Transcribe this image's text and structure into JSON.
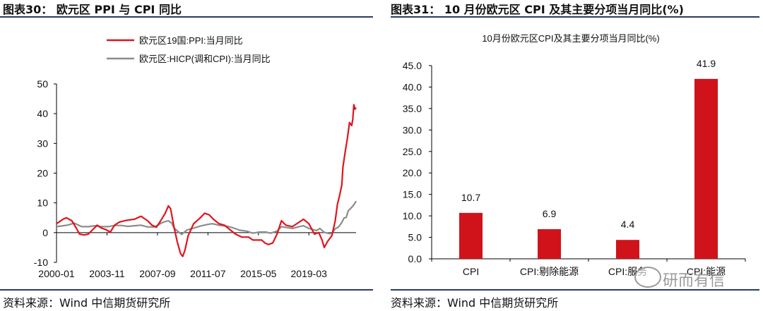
{
  "left_panel": {
    "title": "图表30： 欧元区 PPI 与 CPI 同比",
    "source": "资料来源：Wind 中信期货研究所"
  },
  "right_panel": {
    "title": "图表31： 10 月份欧元区 CPI 及其主要分项当月同比(%)",
    "source": "资料来源：Wind 中信期货研究所"
  },
  "watermark": {
    "text": "研而有信",
    "icon": "wechat-bubble-icon"
  },
  "colors": {
    "red": "#e0141c",
    "gray": "#8c8c8c",
    "bar": "#d0131b",
    "rule": "#2a3a66"
  },
  "chart_data": [
    {
      "type": "line",
      "title": "",
      "xlabel": "",
      "ylabel": "",
      "ylim": [
        -10,
        50
      ],
      "yticks": [
        "50",
        "40",
        "30",
        "20",
        "10",
        "0",
        "-10"
      ],
      "xticks": [
        "2000-01",
        "2003-11",
        "2007-09",
        "2011-07",
        "2015-05",
        "2019-03"
      ],
      "x_range": [
        "2000-01",
        "2022-10"
      ],
      "legend_position": "top",
      "grid": false,
      "series": [
        {
          "name": "欧元区19国:PPI:当月同比",
          "color": "#e0141c",
          "points": [
            [
              "2000-01",
              3.0
            ],
            [
              "2000-07",
              4.5
            ],
            [
              "2000-10",
              5.0
            ],
            [
              "2001-03",
              4.0
            ],
            [
              "2001-07",
              1.5
            ],
            [
              "2001-10",
              -0.5
            ],
            [
              "2002-02",
              -0.8
            ],
            [
              "2002-06",
              -0.5
            ],
            [
              "2002-10",
              1.0
            ],
            [
              "2003-02",
              2.5
            ],
            [
              "2003-06",
              1.5
            ],
            [
              "2003-10",
              1.0
            ],
            [
              "2004-02",
              0.2
            ],
            [
              "2004-06",
              2.5
            ],
            [
              "2004-10",
              3.5
            ],
            [
              "2005-03",
              4.0
            ],
            [
              "2005-08",
              4.3
            ],
            [
              "2005-12",
              4.5
            ],
            [
              "2006-06",
              5.5
            ],
            [
              "2006-12",
              4.0
            ],
            [
              "2007-04",
              2.5
            ],
            [
              "2007-08",
              1.8
            ],
            [
              "2007-12",
              4.0
            ],
            [
              "2008-04",
              6.5
            ],
            [
              "2008-07",
              9.0
            ],
            [
              "2008-09",
              8.0
            ],
            [
              "2008-12",
              2.0
            ],
            [
              "2009-03",
              -3.0
            ],
            [
              "2009-06",
              -7.0
            ],
            [
              "2009-08",
              -8.0
            ],
            [
              "2009-10",
              -6.0
            ],
            [
              "2010-01",
              -1.0
            ],
            [
              "2010-06",
              3.0
            ],
            [
              "2010-12",
              5.0
            ],
            [
              "2011-04",
              6.5
            ],
            [
              "2011-08",
              6.0
            ],
            [
              "2011-12",
              4.5
            ],
            [
              "2012-05",
              3.0
            ],
            [
              "2012-10",
              2.5
            ],
            [
              "2013-03",
              1.0
            ],
            [
              "2013-08",
              -0.5
            ],
            [
              "2014-02",
              -1.5
            ],
            [
              "2014-08",
              -1.5
            ],
            [
              "2014-12",
              -2.5
            ],
            [
              "2015-03",
              -2.5
            ],
            [
              "2015-08",
              -2.5
            ],
            [
              "2015-11",
              -3.5
            ],
            [
              "2016-02",
              -4.0
            ],
            [
              "2016-06",
              -3.5
            ],
            [
              "2016-10",
              -0.5
            ],
            [
              "2017-02",
              4.0
            ],
            [
              "2017-06",
              2.5
            ],
            [
              "2017-12",
              2.0
            ],
            [
              "2018-06",
              3.5
            ],
            [
              "2018-10",
              4.5
            ],
            [
              "2019-03",
              3.0
            ],
            [
              "2019-08",
              -0.5
            ],
            [
              "2019-12",
              0.0
            ],
            [
              "2020-03",
              -2.5
            ],
            [
              "2020-05",
              -5.0
            ],
            [
              "2020-08",
              -3.0
            ],
            [
              "2020-12",
              -1.0
            ],
            [
              "2021-03",
              4.0
            ],
            [
              "2021-05",
              9.5
            ],
            [
              "2021-07",
              12.5
            ],
            [
              "2021-09",
              16.0
            ],
            [
              "2021-10",
              22.0
            ],
            [
              "2021-12",
              27.0
            ],
            [
              "2022-02",
              31.5
            ],
            [
              "2022-04",
              37.0
            ],
            [
              "2022-05",
              36.5
            ],
            [
              "2022-06",
              36.0
            ],
            [
              "2022-07",
              38.0
            ],
            [
              "2022-08",
              43.0
            ],
            [
              "2022-09",
              41.5
            ],
            [
              "2022-10",
              42.0
            ]
          ]
        },
        {
          "name": "欧元区:HICP(调和CPI):当月同比",
          "color": "#8c8c8c",
          "points": [
            [
              "2000-01",
              2.0
            ],
            [
              "2000-07",
              2.3
            ],
            [
              "2000-12",
              2.6
            ],
            [
              "2001-05",
              3.2
            ],
            [
              "2001-12",
              2.0
            ],
            [
              "2002-06",
              2.0
            ],
            [
              "2002-12",
              2.3
            ],
            [
              "2003-06",
              2.0
            ],
            [
              "2003-12",
              2.0
            ],
            [
              "2004-06",
              2.4
            ],
            [
              "2004-12",
              2.4
            ],
            [
              "2005-06",
              2.1
            ],
            [
              "2005-12",
              2.3
            ],
            [
              "2006-06",
              2.5
            ],
            [
              "2006-12",
              1.9
            ],
            [
              "2007-06",
              1.9
            ],
            [
              "2007-10",
              2.6
            ],
            [
              "2007-12",
              3.1
            ],
            [
              "2008-03",
              3.6
            ],
            [
              "2008-07",
              4.0
            ],
            [
              "2008-10",
              3.2
            ],
            [
              "2008-12",
              1.6
            ],
            [
              "2009-03",
              0.6
            ],
            [
              "2009-07",
              -0.6
            ],
            [
              "2009-12",
              0.9
            ],
            [
              "2010-06",
              1.5
            ],
            [
              "2010-12",
              2.2
            ],
            [
              "2011-06",
              2.7
            ],
            [
              "2011-11",
              3.0
            ],
            [
              "2012-06",
              2.4
            ],
            [
              "2012-12",
              2.2
            ],
            [
              "2013-06",
              1.6
            ],
            [
              "2013-12",
              0.8
            ],
            [
              "2014-06",
              0.5
            ],
            [
              "2014-12",
              -0.2
            ],
            [
              "2015-06",
              0.2
            ],
            [
              "2015-12",
              0.2
            ],
            [
              "2016-04",
              -0.2
            ],
            [
              "2016-10",
              0.5
            ],
            [
              "2017-02",
              2.0
            ],
            [
              "2017-12",
              1.4
            ],
            [
              "2018-06",
              2.0
            ],
            [
              "2018-10",
              2.3
            ],
            [
              "2019-03",
              1.4
            ],
            [
              "2019-10",
              0.7
            ],
            [
              "2020-01",
              1.4
            ],
            [
              "2020-05",
              0.1
            ],
            [
              "2020-09",
              -0.3
            ],
            [
              "2020-12",
              -0.3
            ],
            [
              "2021-03",
              1.3
            ],
            [
              "2021-06",
              1.9
            ],
            [
              "2021-09",
              3.4
            ],
            [
              "2021-11",
              4.9
            ],
            [
              "2022-01",
              5.1
            ],
            [
              "2022-03",
              7.4
            ],
            [
              "2022-05",
              8.1
            ],
            [
              "2022-07",
              8.9
            ],
            [
              "2022-09",
              9.9
            ],
            [
              "2022-10",
              10.6
            ]
          ]
        }
      ]
    },
    {
      "type": "bar",
      "title": "10月份欧元区CPI及其主要分项当月同比(%)",
      "xlabel": "",
      "ylabel": "",
      "ylim": [
        0,
        45
      ],
      "yticks": [
        "45.0",
        "40.0",
        "35.0",
        "30.0",
        "25.0",
        "20.0",
        "15.0",
        "10.0",
        "5.0",
        "0.0"
      ],
      "categories": [
        "CPI",
        "CPI:剔除能源",
        "CPI:服务",
        "CPI:能源"
      ],
      "values": [
        10.7,
        6.9,
        4.4,
        41.9
      ],
      "value_labels": [
        "10.7",
        "6.9",
        "4.4",
        "41.9"
      ],
      "color": "#d0131b",
      "grid": false
    }
  ]
}
